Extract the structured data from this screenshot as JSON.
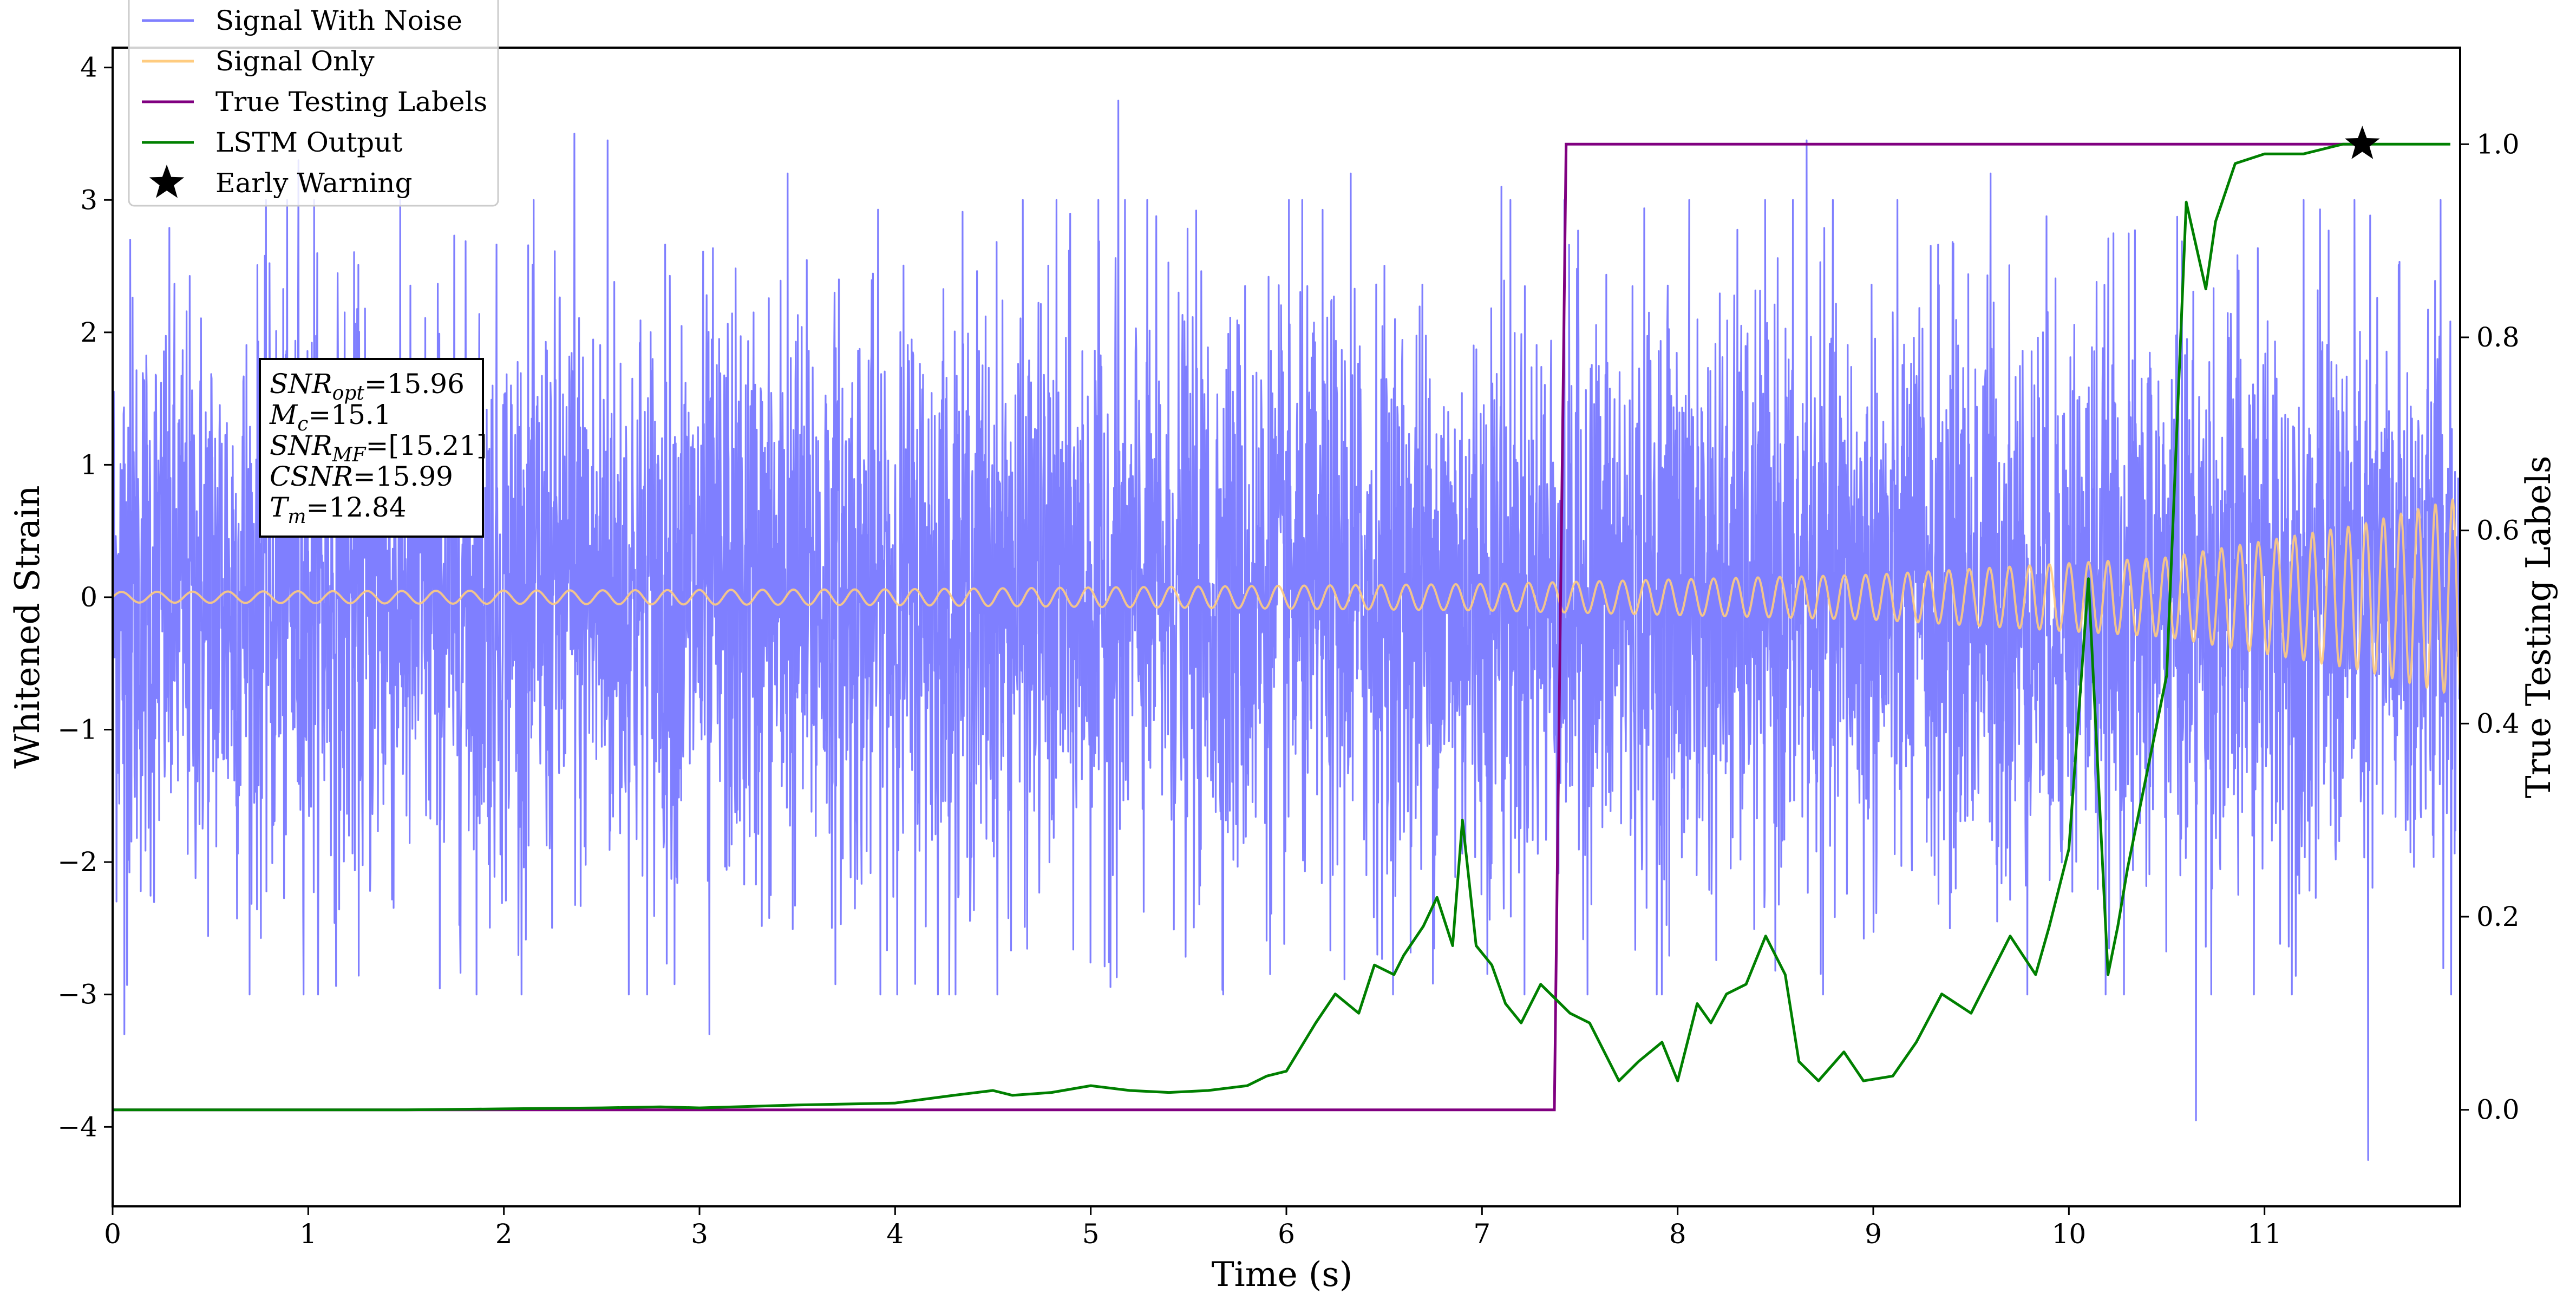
{
  "chart_data": {
    "type": "line",
    "x_axis": {
      "label": "Time (s)",
      "range": [
        0,
        12
      ],
      "ticks": [
        0,
        1,
        2,
        3,
        4,
        5,
        6,
        7,
        8,
        9,
        10,
        11
      ],
      "tick_labels": [
        "0",
        "1",
        "2",
        "3",
        "4",
        "5",
        "6",
        "7",
        "8",
        "9",
        "10",
        "11"
      ]
    },
    "y_left": {
      "label": "Whitened Strain",
      "range": [
        -4.6,
        4.15
      ],
      "ticks": [
        -4,
        -3,
        -2,
        -1,
        0,
        1,
        2,
        3,
        4
      ],
      "tick_labels": [
        "−4",
        "−3",
        "−2",
        "−1",
        "0",
        "1",
        "2",
        "3",
        "4"
      ]
    },
    "y_right": {
      "label": "True Testing Labels",
      "range": [
        -0.1,
        1.1
      ],
      "ticks": [
        0.0,
        0.2,
        0.4,
        0.6,
        0.8,
        1.0
      ],
      "tick_labels": [
        "0.0",
        "0.2",
        "0.4",
        "0.6",
        "0.8",
        "1.0"
      ]
    },
    "grid": false,
    "legend": {
      "placement": "top-left",
      "entries": [
        {
          "label": "Signal With Noise",
          "color": "#7f7fff",
          "marker": "line"
        },
        {
          "label": "Signal Only",
          "color": "#ffcc80",
          "marker": "line"
        },
        {
          "label": "True Testing Labels",
          "color": "#800080",
          "marker": "line"
        },
        {
          "label": "LSTM Output",
          "color": "#008000",
          "marker": "line"
        },
        {
          "label": "Early Warning",
          "color": "#000000",
          "marker": "star"
        }
      ]
    },
    "annotation": {
      "placement": "upper-left",
      "lines": [
        {
          "name": "SNR",
          "sub": "opt",
          "value": "=15.96"
        },
        {
          "name": "M",
          "sub": "c",
          "value": "=15.1"
        },
        {
          "name": "SNR",
          "sub": "MF",
          "value": "=[15.21]"
        },
        {
          "name": "CSNR",
          "sub": "",
          "value": "=15.99"
        },
        {
          "name": "T",
          "sub": "m",
          "value": "=12.84"
        }
      ]
    },
    "series": [
      {
        "name": "Signal With Noise",
        "axis": "left",
        "color": "#7f7fff",
        "kind": "noisy-band",
        "x_range": [
          0,
          12
        ],
        "typical_amplitude": 1.8,
        "extreme_values": [
          {
            "x": 0.06,
            "y": -3.3
          },
          {
            "x": 0.09,
            "y": 2.7
          },
          {
            "x": 0.95,
            "y": 3.3
          },
          {
            "x": 1.03,
            "y": 3.0
          },
          {
            "x": 2.36,
            "y": 3.5
          },
          {
            "x": 2.53,
            "y": 3.45
          },
          {
            "x": 3.05,
            "y": -3.3
          },
          {
            "x": 3.45,
            "y": 3.2
          },
          {
            "x": 5.14,
            "y": 3.75
          },
          {
            "x": 6.33,
            "y": 3.2
          },
          {
            "x": 7.1,
            "y": 3.1
          },
          {
            "x": 8.66,
            "y": 3.45
          },
          {
            "x": 9.6,
            "y": 3.2
          },
          {
            "x": 10.65,
            "y": -3.95
          },
          {
            "x": 11.53,
            "y": -4.25
          },
          {
            "x": 11.9,
            "y": 3.0
          }
        ]
      },
      {
        "name": "Signal Only",
        "axis": "left",
        "color": "#ffcc80",
        "kind": "chirp",
        "x_range": [
          0,
          12
        ],
        "envelope": [
          [
            0,
            0.04
          ],
          [
            4,
            0.06
          ],
          [
            7,
            0.1
          ],
          [
            9,
            0.17
          ],
          [
            10.5,
            0.3
          ],
          [
            11.5,
            0.55
          ],
          [
            12,
            0.75
          ]
        ]
      },
      {
        "name": "True Testing Labels",
        "axis": "right",
        "color": "#800080",
        "x": [
          0,
          7.37,
          7.43,
          11.5
        ],
        "y": [
          0,
          0,
          1,
          1
        ]
      },
      {
        "name": "LSTM Output",
        "axis": "right",
        "color": "#008000",
        "x": [
          0,
          0.5,
          1.0,
          1.5,
          2.0,
          2.5,
          2.8,
          3.0,
          3.5,
          4.0,
          4.3,
          4.5,
          4.6,
          4.8,
          5.0,
          5.2,
          5.4,
          5.6,
          5.8,
          5.9,
          6.0,
          6.15,
          6.25,
          6.37,
          6.45,
          6.55,
          6.6,
          6.7,
          6.77,
          6.85,
          6.9,
          6.97,
          7.05,
          7.12,
          7.2,
          7.3,
          7.45,
          7.55,
          7.7,
          7.8,
          7.92,
          8.0,
          8.1,
          8.17,
          8.25,
          8.35,
          8.45,
          8.55,
          8.62,
          8.72,
          8.85,
          8.95,
          9.1,
          9.22,
          9.35,
          9.5,
          9.7,
          9.83,
          9.9,
          10.0,
          10.1,
          10.2,
          10.25,
          10.3,
          10.4,
          10.5,
          10.6,
          10.7,
          10.75,
          10.85,
          11.0,
          11.2,
          11.4,
          11.6,
          11.95
        ],
        "y": [
          0.0,
          0.0,
          0.0,
          0.0,
          0.001,
          0.002,
          0.003,
          0.002,
          0.005,
          0.007,
          0.015,
          0.02,
          0.015,
          0.018,
          0.025,
          0.02,
          0.018,
          0.02,
          0.025,
          0.035,
          0.04,
          0.09,
          0.12,
          0.1,
          0.15,
          0.14,
          0.16,
          0.19,
          0.22,
          0.17,
          0.3,
          0.17,
          0.15,
          0.11,
          0.09,
          0.13,
          0.1,
          0.09,
          0.03,
          0.05,
          0.07,
          0.03,
          0.11,
          0.09,
          0.12,
          0.13,
          0.18,
          0.14,
          0.05,
          0.03,
          0.06,
          0.03,
          0.035,
          0.07,
          0.12,
          0.1,
          0.18,
          0.14,
          0.19,
          0.27,
          0.55,
          0.14,
          0.19,
          0.25,
          0.35,
          0.45,
          0.94,
          0.85,
          0.92,
          0.98,
          0.99,
          0.99,
          1.0,
          1.0,
          1.0
        ]
      }
    ],
    "early_warning": {
      "label": "Early Warning",
      "x": 11.5,
      "y": 1.0,
      "axis": "right",
      "marker": "star",
      "color": "#000000"
    }
  }
}
